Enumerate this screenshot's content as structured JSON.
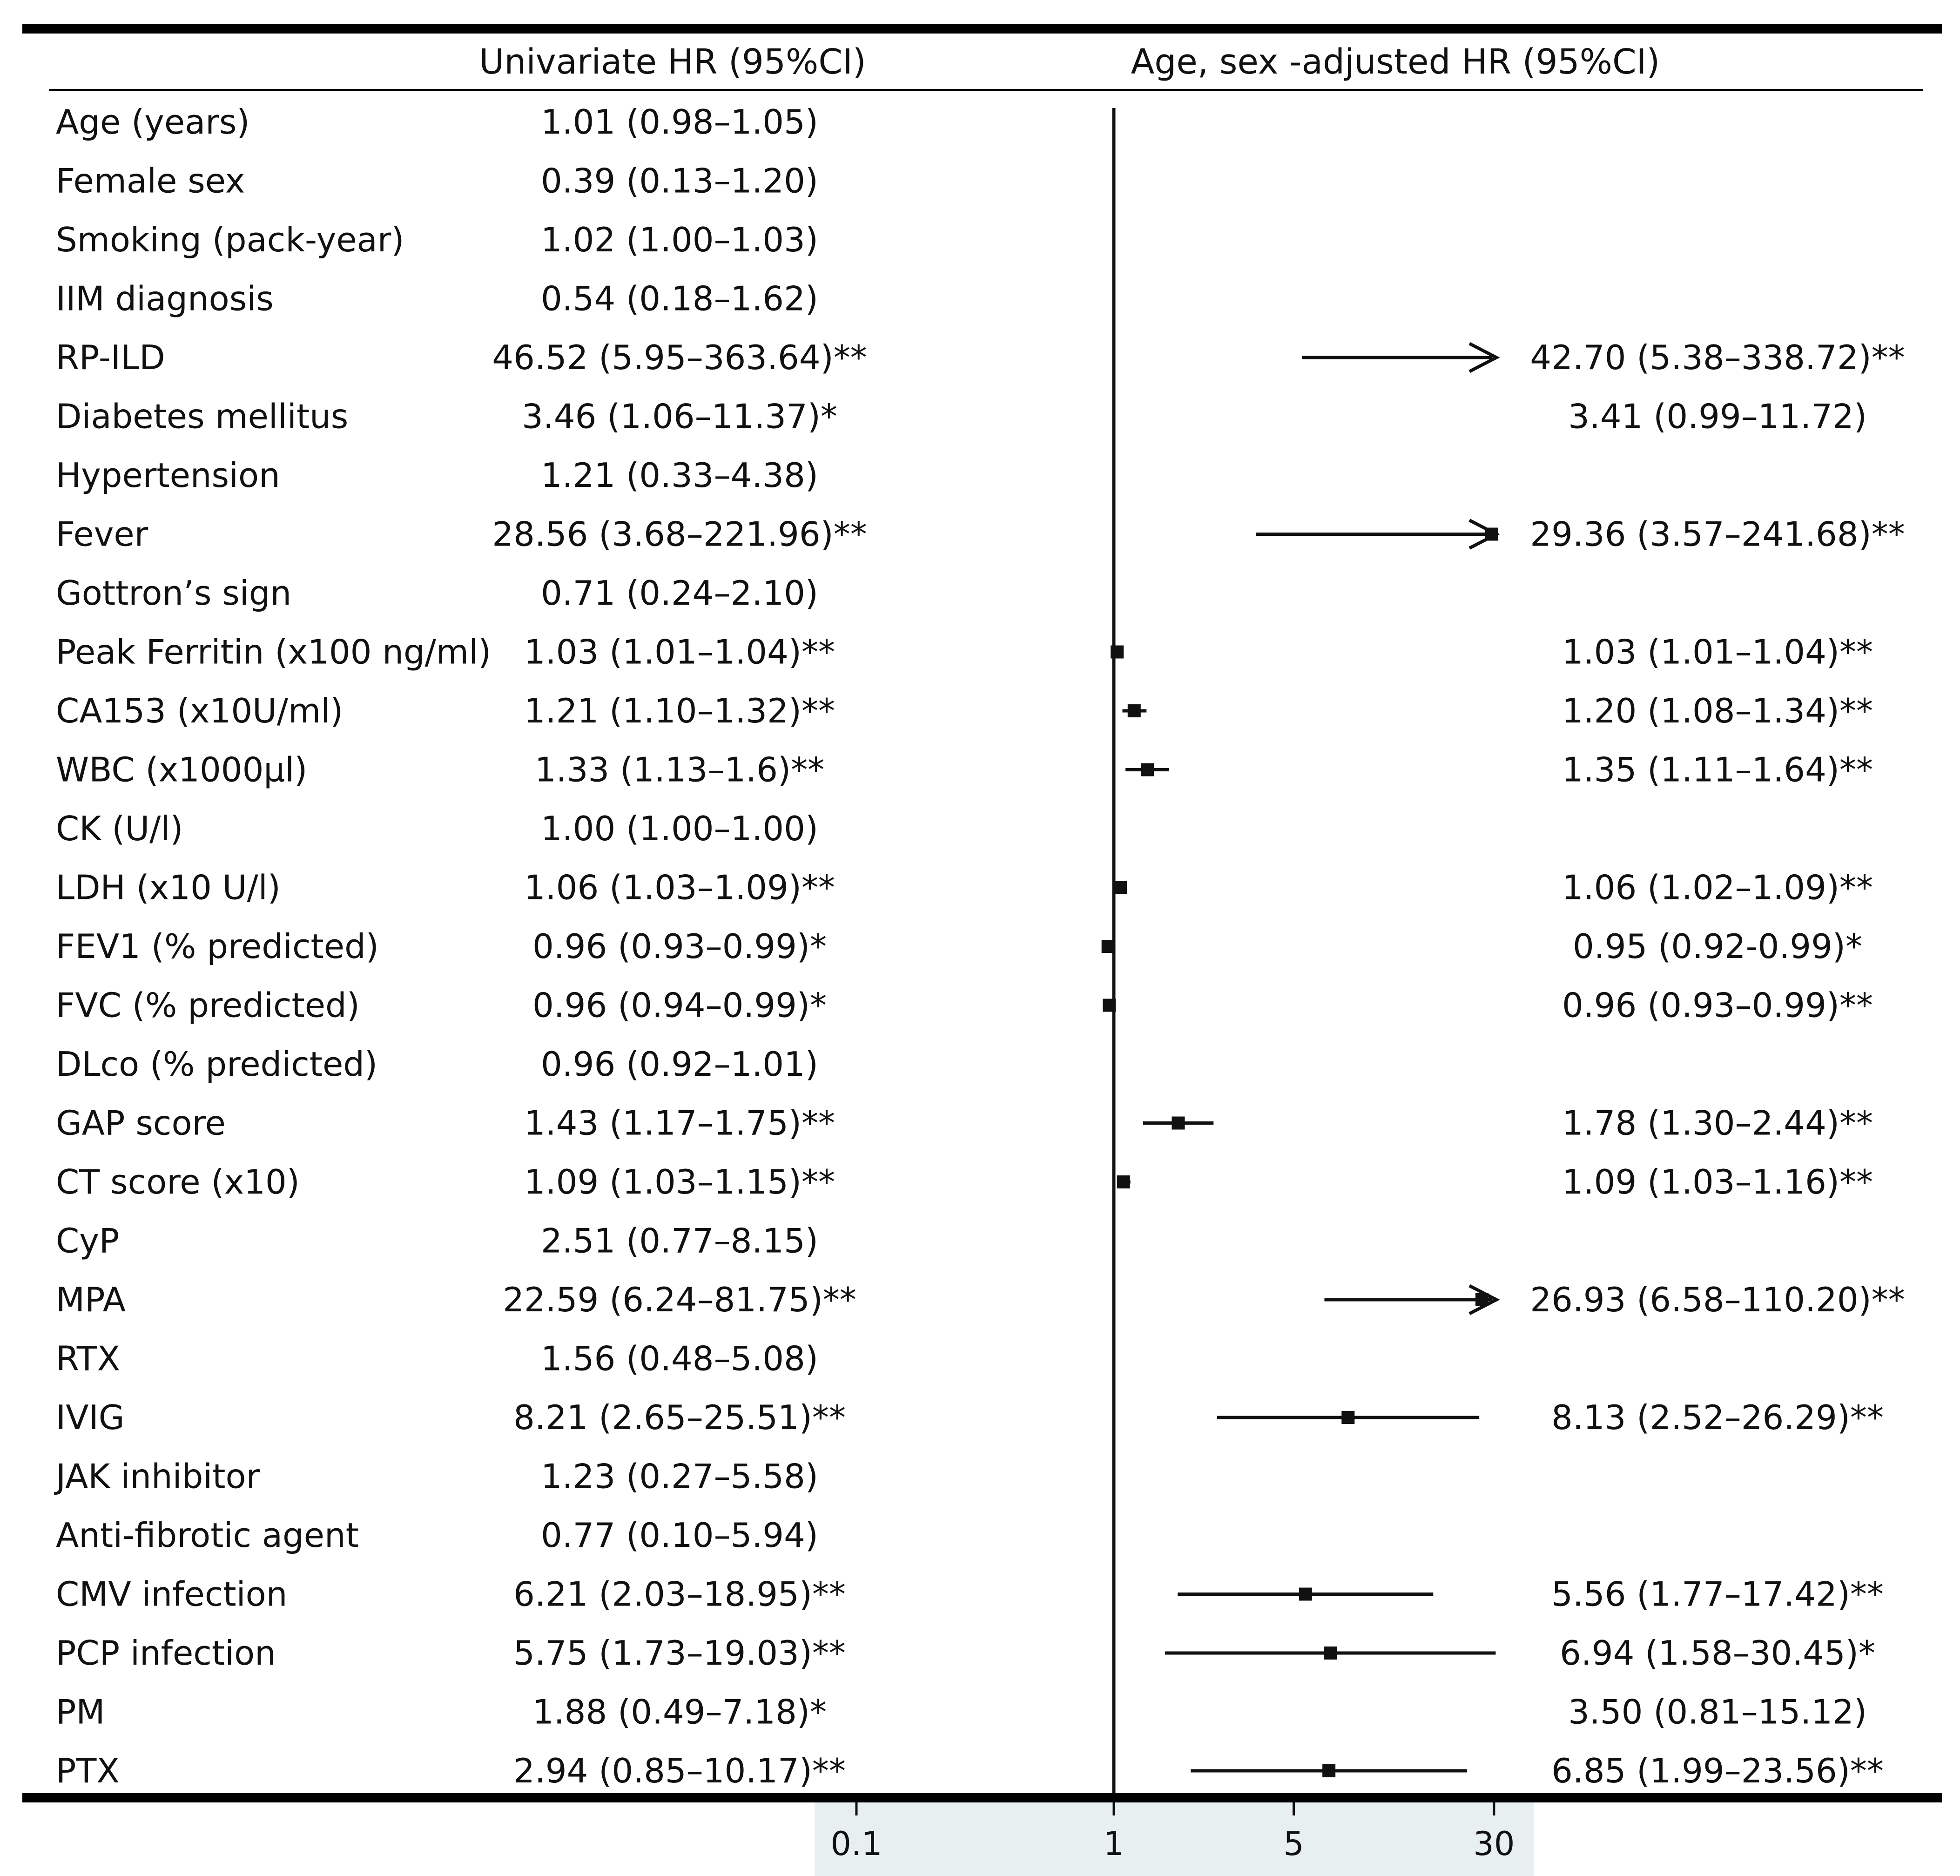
{
  "columns": {
    "univariate_header": "Univariate HR (95%CI)",
    "adjusted_header": "Age, sex -adjusted HR (95%CI)"
  },
  "chart_data": {
    "type": "forest",
    "xscale": "log",
    "xlim": [
      0.1,
      30
    ],
    "xticks": [
      0.1,
      1,
      5,
      30
    ],
    "xtick_labels": [
      "0.1",
      "1",
      "5",
      "30"
    ],
    "reference_line": 1,
    "rows": [
      {
        "label": "Age (years)",
        "univariate": "1.01 (0.98–1.05)",
        "adjusted": "",
        "hr": null,
        "lo": null,
        "hi": null
      },
      {
        "label": "Female sex",
        "univariate": "0.39 (0.13–1.20)",
        "adjusted": "",
        "hr": null,
        "lo": null,
        "hi": null
      },
      {
        "label": "Smoking (pack-year)",
        "univariate": "1.02 (1.00–1.03)",
        "adjusted": "",
        "hr": null,
        "lo": null,
        "hi": null
      },
      {
        "label": "IIM diagnosis",
        "univariate": "0.54 (0.18–1.62)",
        "adjusted": "",
        "hr": null,
        "lo": null,
        "hi": null
      },
      {
        "label": "RP-ILD",
        "univariate": "46.52 (5.95–363.64)**",
        "adjusted": "42.70 (5.38–338.72)**",
        "hr": 42.7,
        "lo": 5.38,
        "hi": 338.72
      },
      {
        "label": "Diabetes mellitus",
        "univariate": "3.46 (1.06–11.37)*",
        "adjusted": "3.41 (0.99–11.72)",
        "hr": null,
        "lo": null,
        "hi": null
      },
      {
        "label": "Hypertension",
        "univariate": "1.21 (0.33–4.38)",
        "adjusted": "",
        "hr": null,
        "lo": null,
        "hi": null
      },
      {
        "label": "Fever",
        "univariate": "28.56 (3.68–221.96)**",
        "adjusted": "29.36 (3.57–241.68)**",
        "hr": 29.36,
        "lo": 3.57,
        "hi": 241.68
      },
      {
        "label": "Gottron’s sign",
        "univariate": "0.71 (0.24–2.10)",
        "adjusted": "",
        "hr": null,
        "lo": null,
        "hi": null
      },
      {
        "label": "Peak Ferritin (x100 ng/ml)",
        "univariate": "1.03 (1.01–1.04)**",
        "adjusted": "1.03 (1.01–1.04)**",
        "hr": 1.03,
        "lo": 1.01,
        "hi": 1.04
      },
      {
        "label": "CA153 (x10U/ml)",
        "univariate": "1.21 (1.10–1.32)**",
        "adjusted": "1.20 (1.08–1.34)**",
        "hr": 1.2,
        "lo": 1.08,
        "hi": 1.34
      },
      {
        "label": "WBC (x1000μl)",
        "univariate": "1.33 (1.13–1.6)**",
        "adjusted": "1.35 (1.11–1.64)**",
        "hr": 1.35,
        "lo": 1.11,
        "hi": 1.64
      },
      {
        "label": "CK (U/l)",
        "univariate": "1.00 (1.00–1.00)",
        "adjusted": "",
        "hr": null,
        "lo": null,
        "hi": null
      },
      {
        "label": "LDH (x10 U/l)",
        "univariate": "1.06 (1.03–1.09)**",
        "adjusted": "1.06 (1.02–1.09)**",
        "hr": 1.06,
        "lo": 1.02,
        "hi": 1.09
      },
      {
        "label": "FEV1 (% predicted)",
        "univariate": "0.96 (0.93–0.99)*",
        "adjusted": "0.95 (0.92-0.99)*",
        "hr": 0.95,
        "lo": 0.92,
        "hi": 0.99
      },
      {
        "label": "FVC (% predicted)",
        "univariate": "0.96 (0.94–0.99)*",
        "adjusted": "0.96 (0.93–0.99)**",
        "hr": 0.96,
        "lo": 0.93,
        "hi": 0.99
      },
      {
        "label": "DLco (% predicted)",
        "univariate": "0.96 (0.92–1.01)",
        "adjusted": "",
        "hr": null,
        "lo": null,
        "hi": null
      },
      {
        "label": "GAP score",
        "univariate": "1.43 (1.17–1.75)**",
        "adjusted": "1.78 (1.30–2.44)**",
        "hr": 1.78,
        "lo": 1.3,
        "hi": 2.44
      },
      {
        "label": "CT score (x10)",
        "univariate": "1.09 (1.03–1.15)**",
        "adjusted": "1.09 (1.03–1.16)**",
        "hr": 1.09,
        "lo": 1.03,
        "hi": 1.16
      },
      {
        "label": "CyP",
        "univariate": "2.51 (0.77–8.15)",
        "adjusted": "",
        "hr": null,
        "lo": null,
        "hi": null
      },
      {
        "label": "MPA",
        "univariate": "22.59 (6.24–81.75)**",
        "adjusted": "26.93 (6.58–110.20)**",
        "hr": 26.93,
        "lo": 6.58,
        "hi": 110.2
      },
      {
        "label": "RTX",
        "univariate": "1.56 (0.48–5.08)",
        "adjusted": "",
        "hr": null,
        "lo": null,
        "hi": null
      },
      {
        "label": "IVIG",
        "univariate": "8.21 (2.65–25.51)**",
        "adjusted": "8.13 (2.52–26.29)**",
        "hr": 8.13,
        "lo": 2.52,
        "hi": 26.29
      },
      {
        "label": "JAK inhibitor",
        "univariate": "1.23 (0.27–5.58)",
        "adjusted": "",
        "hr": null,
        "lo": null,
        "hi": null
      },
      {
        "label": "Anti-fibrotic agent",
        "univariate": "0.77 (0.10–5.94)",
        "adjusted": "",
        "hr": null,
        "lo": null,
        "hi": null
      },
      {
        "label": "CMV infection",
        "univariate": "6.21 (2.03–18.95)**",
        "adjusted": "5.56 (1.77–17.42)**",
        "hr": 5.56,
        "lo": 1.77,
        "hi": 17.42
      },
      {
        "label": "PCP infection",
        "univariate": "5.75 (1.73–19.03)**",
        "adjusted": "6.94 (1.58–30.45)*",
        "hr": 6.94,
        "lo": 1.58,
        "hi": 30.45
      },
      {
        "label": "PM",
        "univariate": "1.88 (0.49–7.18)*",
        "adjusted": "3.50 (0.81–15.12)",
        "hr": null,
        "lo": null,
        "hi": null
      },
      {
        "label": "PTX",
        "univariate": "2.94 (0.85–10.17)**",
        "adjusted": "6.85 (1.99–23.56)**",
        "hr": 6.85,
        "lo": 1.99,
        "hi": 23.56
      }
    ]
  }
}
